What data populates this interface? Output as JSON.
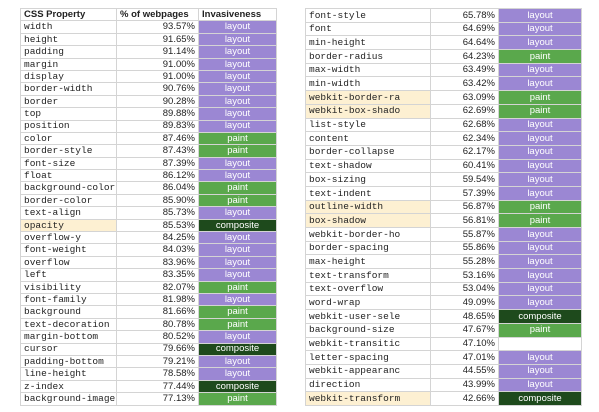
{
  "invasiveness_colors": {
    "layout": "#9b87d3",
    "paint": "#5aa84c",
    "composite": "#1e4a1c"
  },
  "highlight_color": "#fdf0d2",
  "left_table": {
    "header": [
      "CSS Property",
      "% of webpages",
      "Invasiveness"
    ],
    "highlighted_rows": [
      16
    ],
    "rows": [
      [
        "width",
        "93.57%",
        "layout"
      ],
      [
        "height",
        "91.65%",
        "layout"
      ],
      [
        "padding",
        "91.14%",
        "layout"
      ],
      [
        "margin",
        "91.00%",
        "layout"
      ],
      [
        "display",
        "91.00%",
        "layout"
      ],
      [
        "border-width",
        "90.76%",
        "layout"
      ],
      [
        "border",
        "90.28%",
        "layout"
      ],
      [
        "top",
        "89.88%",
        "layout"
      ],
      [
        "position",
        "89.83%",
        "layout"
      ],
      [
        "color",
        "87.46%",
        "paint"
      ],
      [
        "border-style",
        "87.43%",
        "paint"
      ],
      [
        "font-size",
        "87.39%",
        "layout"
      ],
      [
        "float",
        "86.12%",
        "layout"
      ],
      [
        "background-color",
        "86.04%",
        "paint"
      ],
      [
        "border-color",
        "85.90%",
        "paint"
      ],
      [
        "text-align",
        "85.73%",
        "layout"
      ],
      [
        "opacity",
        "85.53%",
        "composite"
      ],
      [
        "overflow-y",
        "84.25%",
        "layout"
      ],
      [
        "font-weight",
        "84.03%",
        "layout"
      ],
      [
        "overflow",
        "83.96%",
        "layout"
      ],
      [
        "left",
        "83.35%",
        "layout"
      ],
      [
        "visibility",
        "82.07%",
        "paint"
      ],
      [
        "font-family",
        "81.98%",
        "layout"
      ],
      [
        "background",
        "81.66%",
        "paint"
      ],
      [
        "text-decoration",
        "80.78%",
        "paint"
      ],
      [
        "margin-bottom",
        "80.52%",
        "layout"
      ],
      [
        "cursor",
        "79.66%",
        "composite"
      ],
      [
        "padding-bottom",
        "79.21%",
        "layout"
      ],
      [
        "line-height",
        "78.58%",
        "layout"
      ],
      [
        "z-index",
        "77.44%",
        "composite"
      ],
      [
        "background-image",
        "77.13%",
        "paint"
      ]
    ]
  },
  "right_table": {
    "highlighted_rows": [
      6,
      7,
      14,
      15,
      28
    ],
    "rows": [
      [
        "font-style",
        "65.78%",
        "layout"
      ],
      [
        "font",
        "64.69%",
        "layout"
      ],
      [
        "min-height",
        "64.64%",
        "layout"
      ],
      [
        "border-radius",
        "64.23%",
        "paint"
      ],
      [
        "max-width",
        "63.49%",
        "layout"
      ],
      [
        "min-width",
        "63.42%",
        "layout"
      ],
      [
        "webkit-border-ra",
        "63.09%",
        "paint"
      ],
      [
        "webkit-box-shado",
        "62.69%",
        "paint"
      ],
      [
        "list-style",
        "62.68%",
        "layout"
      ],
      [
        "content",
        "62.34%",
        "layout"
      ],
      [
        "border-collapse",
        "62.17%",
        "layout"
      ],
      [
        "text-shadow",
        "60.41%",
        "layout"
      ],
      [
        "box-sizing",
        "59.54%",
        "layout"
      ],
      [
        "text-indent",
        "57.39%",
        "layout"
      ],
      [
        "outline-width",
        "56.87%",
        "paint"
      ],
      [
        "box-shadow",
        "56.81%",
        "paint"
      ],
      [
        "webkit-border-ho",
        "55.87%",
        "layout"
      ],
      [
        "border-spacing",
        "55.86%",
        "layout"
      ],
      [
        "max-height",
        "55.28%",
        "layout"
      ],
      [
        "text-transform",
        "53.16%",
        "layout"
      ],
      [
        "text-overflow",
        "53.04%",
        "layout"
      ],
      [
        "word-wrap",
        "49.09%",
        "layout"
      ],
      [
        "webkit-user-sele",
        "48.65%",
        "composite"
      ],
      [
        "background-size",
        "47.67%",
        "paint"
      ],
      [
        "webkit-transitic",
        "47.10%",
        null
      ],
      [
        "letter-spacing",
        "47.01%",
        "layout"
      ],
      [
        "webkit-appearanc",
        "44.55%",
        "layout"
      ],
      [
        "direction",
        "43.99%",
        "layout"
      ],
      [
        "webkit-transform",
        "42.66%",
        "composite"
      ]
    ]
  }
}
